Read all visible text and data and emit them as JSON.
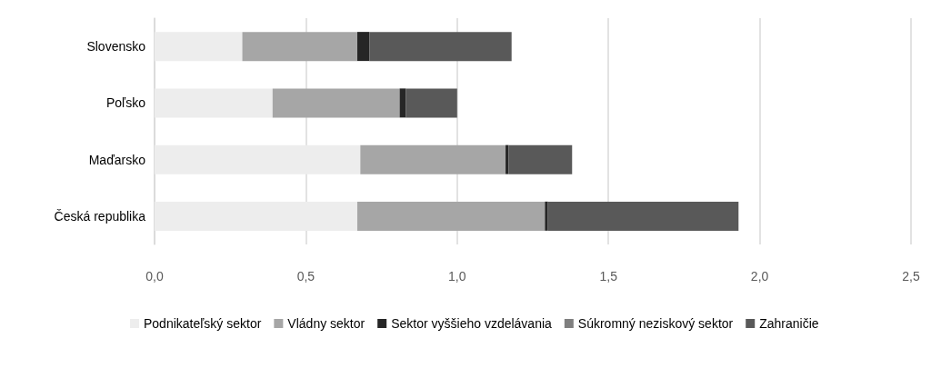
{
  "chart_data": {
    "type": "bar",
    "orientation": "horizontal",
    "stacked": true,
    "categories": [
      "Slovensko",
      "Poľsko",
      "Maďarsko",
      "Česká republika"
    ],
    "series": [
      {
        "name": "Podnikateľský sektor",
        "color": "#ededed",
        "values": [
          0.29,
          0.39,
          0.68,
          0.67
        ]
      },
      {
        "name": "Vládny sektor",
        "color": "#a6a6a6",
        "values": [
          0.38,
          0.42,
          0.48,
          0.62
        ]
      },
      {
        "name": "Sektor vyššieho vzdelávania",
        "color": "#262626",
        "values": [
          0.04,
          0.02,
          0.01,
          0.01
        ]
      },
      {
        "name": "Súkromný neziskový sektor",
        "color": "#7f7f7f",
        "values": [
          0,
          0,
          0,
          0
        ]
      },
      {
        "name": "Zahraničie",
        "color": "#595959",
        "values": [
          0.47,
          0.17,
          0.21,
          0.63
        ]
      }
    ],
    "xlim": [
      0,
      2.5
    ],
    "xticks": [
      {
        "value": 0,
        "label": "0,0"
      },
      {
        "value": 0.5,
        "label": "0,5"
      },
      {
        "value": 1,
        "label": "1,0"
      },
      {
        "value": 1.5,
        "label": "1,5"
      },
      {
        "value": 2,
        "label": "2,0"
      },
      {
        "value": 2.5,
        "label": "2,5"
      }
    ],
    "grid": "x",
    "legend": "bottom"
  }
}
